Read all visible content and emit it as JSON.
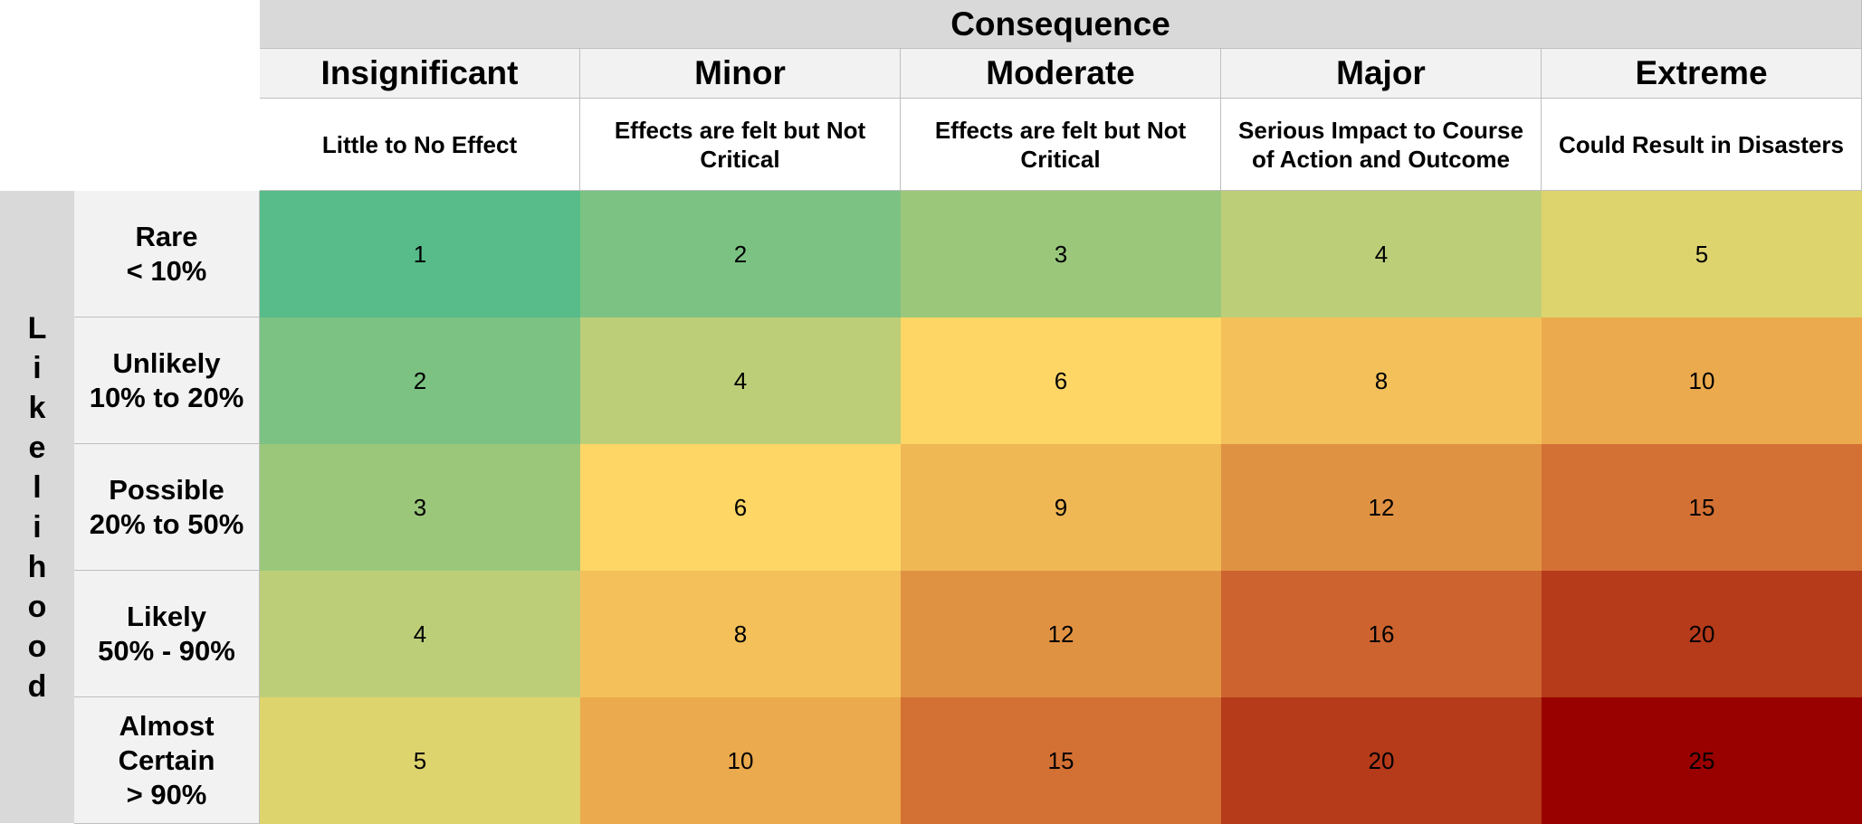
{
  "chart_data": {
    "type": "heatmap",
    "title": "Consequence",
    "ylabel": "Likelihood",
    "columns": [
      {
        "label": "Insignificant",
        "description": "Little to No Effect"
      },
      {
        "label": "Minor",
        "description": "Effects are felt but Not Critical"
      },
      {
        "label": "Moderate",
        "description": "Effects are felt but Not Critical"
      },
      {
        "label": "Major",
        "description": "Serious Impact to Course of Action and Outcome"
      },
      {
        "label": "Extreme",
        "description": "Could Result in Disasters"
      }
    ],
    "rows": [
      {
        "label": "Rare\n< 10%",
        "values": [
          1,
          2,
          3,
          4,
          5
        ]
      },
      {
        "label": "Unlikely\n10% to 20%",
        "values": [
          2,
          4,
          6,
          8,
          10
        ]
      },
      {
        "label": "Possible\n20% to 50%",
        "values": [
          3,
          6,
          9,
          12,
          15
        ]
      },
      {
        "label": "Likely\n50% - 90%",
        "values": [
          4,
          8,
          12,
          16,
          20
        ]
      },
      {
        "label": "Almost\nCertain\n> 90%",
        "values": [
          5,
          10,
          15,
          20,
          25
        ]
      }
    ],
    "color_scale": {
      "1": "#57bb8a",
      "2": "#7bc283",
      "3": "#9bc77b",
      "4": "#bdce78",
      "5": "#ded46e",
      "6": "#fdd666",
      "8": "#f3c05a",
      "9": "#f0b755",
      "10": "#eaaa4d",
      "12": "#e09243",
      "15": "#d37135",
      "16": "#cd642f",
      "20": "#b63b1a",
      "25": "#990000"
    }
  }
}
